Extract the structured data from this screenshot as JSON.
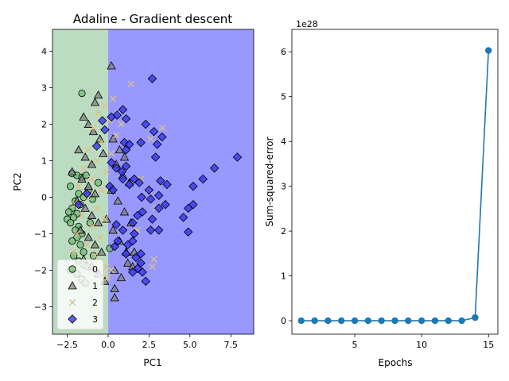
{
  "chart_data": [
    {
      "type": "scatter",
      "title": "Adaline - Gradient descent",
      "xlabel": "PC1",
      "ylabel": "PC2",
      "xlim": [
        -3.4,
        8.9
      ],
      "ylim": [
        -3.75,
        4.6
      ],
      "xticks": [
        -2.5,
        0.0,
        2.5,
        5.0,
        7.5
      ],
      "xtick_labels": [
        "−2.5",
        "0.0",
        "2.5",
        "5.0",
        "7.5"
      ],
      "yticks": [
        -3,
        -2,
        -1,
        0,
        1,
        2,
        3,
        4
      ],
      "ytick_labels": [
        "−3",
        "−2",
        "−1",
        "0",
        "1",
        "2",
        "3",
        "4"
      ],
      "grid": false,
      "legend_position": "lower-left",
      "decision_regions": [
        {
          "x_min": -3.4,
          "x_max": 0.0,
          "color": "#bcdcc1"
        },
        {
          "x_min": 0.0,
          "x_max": 8.9,
          "color": "#9898ff"
        }
      ],
      "series": [
        {
          "name": "0",
          "marker": "circle",
          "color": "#6fbf73",
          "points": [
            [
              -1.6,
              2.85
            ],
            [
              -2.2,
              0.65
            ],
            [
              -1.9,
              0.6
            ],
            [
              -1.6,
              0.55
            ],
            [
              -2.3,
              0.3
            ],
            [
              -1.8,
              0.1
            ],
            [
              -1.5,
              0.0
            ],
            [
              -2.0,
              -0.1
            ],
            [
              -1.7,
              -0.2
            ],
            [
              -2.2,
              -0.3
            ],
            [
              -2.4,
              -0.4
            ],
            [
              -1.9,
              -0.45
            ],
            [
              -2.1,
              -0.55
            ],
            [
              -2.5,
              -0.6
            ],
            [
              -2.3,
              -0.7
            ],
            [
              -1.8,
              -0.8
            ],
            [
              -2.0,
              -0.9
            ],
            [
              -1.6,
              -1.0
            ],
            [
              -1.9,
              -1.1
            ],
            [
              -2.2,
              -1.2
            ],
            [
              -1.7,
              -1.3
            ],
            [
              -1.5,
              -1.5
            ],
            [
              -2.1,
              -1.6
            ],
            [
              -1.8,
              -1.75
            ],
            [
              -1.5,
              -1.85
            ],
            [
              -1.3,
              -1.9
            ],
            [
              -2.3,
              -2.0
            ],
            [
              -1.9,
              -2.1
            ],
            [
              -1.6,
              -2.25
            ],
            [
              -1.4,
              -2.35
            ],
            [
              -0.95,
              -0.05
            ],
            [
              -0.6,
              0.4
            ],
            [
              0.1,
              -1.4
            ],
            [
              -1.2,
              0.2
            ],
            [
              -1.1,
              -0.7
            ],
            [
              -0.9,
              -1.6
            ],
            [
              -1.35,
              0.6
            ]
          ]
        },
        {
          "name": "1",
          "marker": "triangle",
          "color": "#808080",
          "points": [
            [
              0.2,
              3.6
            ],
            [
              -0.6,
              2.8
            ],
            [
              -0.8,
              2.6
            ],
            [
              -1.5,
              2.2
            ],
            [
              -1.2,
              2.0
            ],
            [
              -0.9,
              1.8
            ],
            [
              -0.5,
              1.6
            ],
            [
              -1.8,
              1.3
            ],
            [
              -1.4,
              1.1
            ],
            [
              -1.0,
              0.9
            ],
            [
              -2.2,
              0.7
            ],
            [
              -1.6,
              0.5
            ],
            [
              -1.2,
              0.3
            ],
            [
              -0.8,
              0.1
            ],
            [
              -1.9,
              -0.1
            ],
            [
              -1.4,
              -0.3
            ],
            [
              -1.0,
              -0.5
            ],
            [
              -0.6,
              -0.7
            ],
            [
              -1.7,
              -0.9
            ],
            [
              -1.2,
              -1.1
            ],
            [
              -0.8,
              -1.3
            ],
            [
              -0.4,
              -1.5
            ],
            [
              -1.5,
              -1.7
            ],
            [
              -1.0,
              -1.9
            ],
            [
              -0.6,
              -2.1
            ],
            [
              -0.2,
              -2.3
            ],
            [
              0.4,
              -2.0
            ],
            [
              0.8,
              -2.2
            ],
            [
              1.2,
              -1.8
            ],
            [
              1.6,
              -1.5
            ],
            [
              0.3,
              1.6
            ],
            [
              0.7,
              1.3
            ],
            [
              1.0,
              1.1
            ],
            [
              0.5,
              0.9
            ],
            [
              0.9,
              0.6
            ],
            [
              1.3,
              0.4
            ],
            [
              0.2,
              0.2
            ],
            [
              0.6,
              -0.1
            ],
            [
              1.0,
              -0.4
            ],
            [
              1.4,
              -0.7
            ],
            [
              0.3,
              -0.9
            ],
            [
              0.7,
              -1.2
            ],
            [
              1.1,
              -1.5
            ],
            [
              0.4,
              -2.5
            ],
            [
              0.4,
              -2.75
            ],
            [
              1.5,
              -1.9
            ],
            [
              -0.3,
              1.2
            ],
            [
              -0.1,
              -0.6
            ]
          ]
        },
        {
          "name": "2",
          "marker": "x",
          "color": "#d8c18a",
          "points": [
            [
              1.4,
              3.1
            ],
            [
              0.3,
              2.7
            ],
            [
              -0.2,
              2.5
            ],
            [
              0.6,
              2.3
            ],
            [
              -0.6,
              2.3
            ],
            [
              0.1,
              2.1
            ],
            [
              -0.9,
              1.9
            ],
            [
              0.5,
              1.7
            ],
            [
              -0.4,
              1.5
            ],
            [
              -1.2,
              1.3
            ],
            [
              0.2,
              1.2
            ],
            [
              -0.7,
              1.0
            ],
            [
              -1.5,
              0.8
            ],
            [
              -0.1,
              0.7
            ],
            [
              -1.0,
              0.5
            ],
            [
              -1.8,
              0.3
            ],
            [
              -0.4,
              0.2
            ],
            [
              -1.3,
              0.0
            ],
            [
              -2.0,
              -0.2
            ],
            [
              -0.7,
              -0.3
            ],
            [
              -1.6,
              -0.5
            ],
            [
              -0.2,
              -0.6
            ],
            [
              -1.0,
              -0.8
            ],
            [
              -1.9,
              -1.0
            ],
            [
              -0.5,
              -1.1
            ],
            [
              -1.3,
              -1.3
            ],
            [
              -2.1,
              -1.5
            ],
            [
              -0.8,
              -1.6
            ],
            [
              -1.6,
              -1.8
            ],
            [
              -0.1,
              -1.9
            ],
            [
              -1.0,
              -2.1
            ],
            [
              -0.4,
              -2.2
            ],
            [
              0.2,
              -2.0
            ],
            [
              -1.4,
              -2.3
            ],
            [
              2.0,
              0.5
            ],
            [
              2.5,
              0.2
            ],
            [
              2.8,
              -1.7
            ],
            [
              2.7,
              -1.9
            ],
            [
              1.8,
              -0.9
            ],
            [
              2.6,
              1.6
            ],
            [
              3.3,
              1.9
            ],
            [
              2.9,
              -0.3
            ],
            [
              0.8,
              2.0
            ],
            [
              0.0,
              -2.2
            ]
          ]
        },
        {
          "name": "3",
          "marker": "diamond",
          "color": "#3333ee",
          "points": [
            [
              2.7,
              3.25
            ],
            [
              0.9,
              2.4
            ],
            [
              1.1,
              2.15
            ],
            [
              0.55,
              2.25
            ],
            [
              0.2,
              2.2
            ],
            [
              -0.35,
              2.1
            ],
            [
              -0.2,
              1.85
            ],
            [
              2.3,
              2.0
            ],
            [
              2.8,
              1.8
            ],
            [
              3.3,
              1.65
            ],
            [
              3.0,
              1.45
            ],
            [
              2.0,
              1.5
            ],
            [
              1.0,
              1.5
            ],
            [
              1.3,
              1.45
            ],
            [
              -0.7,
              1.4
            ],
            [
              1.1,
              1.3
            ],
            [
              2.9,
              1.1
            ],
            [
              0.2,
              0.95
            ],
            [
              1.1,
              0.85
            ],
            [
              0.5,
              0.8
            ],
            [
              0.85,
              0.7
            ],
            [
              0.9,
              0.5
            ],
            [
              1.6,
              0.5
            ],
            [
              1.9,
              0.4
            ],
            [
              3.2,
              0.45
            ],
            [
              3.6,
              0.35
            ],
            [
              1.3,
              0.35
            ],
            [
              0.1,
              0.3
            ],
            [
              0.3,
              0.2
            ],
            [
              2.5,
              0.2
            ],
            [
              3.1,
              0.05
            ],
            [
              2.05,
              0.0
            ],
            [
              2.6,
              -0.05
            ],
            [
              5.8,
              0.5
            ],
            [
              6.5,
              0.8
            ],
            [
              7.9,
              1.1
            ],
            [
              5.2,
              0.3
            ],
            [
              5.2,
              -0.2
            ],
            [
              4.9,
              -0.3
            ],
            [
              3.5,
              -0.2
            ],
            [
              3.1,
              -0.3
            ],
            [
              2.1,
              -0.4
            ],
            [
              1.8,
              -0.5
            ],
            [
              4.6,
              -0.55
            ],
            [
              2.7,
              -0.6
            ],
            [
              1.5,
              -0.7
            ],
            [
              0.5,
              -0.75
            ],
            [
              0.9,
              -0.9
            ],
            [
              1.6,
              -1.0
            ],
            [
              2.6,
              -0.9
            ],
            [
              3.1,
              -0.9
            ],
            [
              4.9,
              -0.95
            ],
            [
              0.6,
              -1.2
            ],
            [
              1.5,
              -1.2
            ],
            [
              1.2,
              -1.3
            ],
            [
              0.4,
              -1.35
            ],
            [
              1.1,
              -1.55
            ],
            [
              2.0,
              -1.55
            ],
            [
              1.7,
              -1.65
            ],
            [
              2.0,
              -1.8
            ],
            [
              1.8,
              -1.95
            ],
            [
              1.5,
              -2.05
            ],
            [
              2.3,
              -2.3
            ],
            [
              2.1,
              -2.05
            ],
            [
              -1.8,
              -0.2
            ],
            [
              -1.3,
              0.1
            ]
          ]
        }
      ]
    },
    {
      "type": "line",
      "title": "",
      "xlabel": "Epochs",
      "ylabel": "Sum-squared-error",
      "scale_label": "1e28",
      "xlim": [
        0.3,
        15.7
      ],
      "ylim": [
        -0.3,
        6.5
      ],
      "xticks": [
        5,
        10,
        15
      ],
      "xtick_labels": [
        "5",
        "10",
        "15"
      ],
      "yticks": [
        0,
        1,
        2,
        3,
        4,
        5,
        6
      ],
      "ytick_labels": [
        "0",
        "1",
        "2",
        "3",
        "4",
        "5",
        "6"
      ],
      "grid": false,
      "color": "#1f77b4",
      "x": [
        1,
        2,
        3,
        4,
        5,
        6,
        7,
        8,
        9,
        10,
        11,
        12,
        13,
        14,
        15
      ],
      "y": [
        0,
        0,
        0,
        0,
        0,
        0,
        0,
        0,
        0,
        0,
        0,
        0,
        0,
        0.07,
        6.03
      ]
    }
  ]
}
